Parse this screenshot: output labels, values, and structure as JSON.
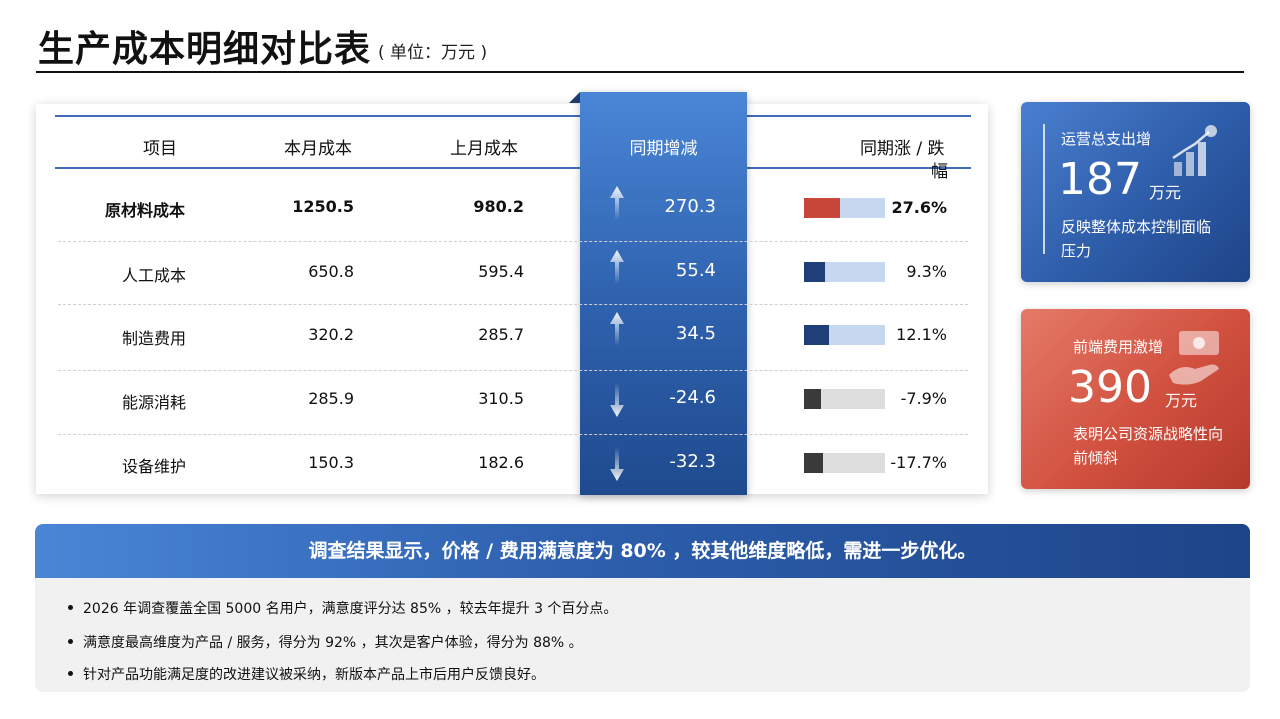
{
  "header": {
    "title": "生产成本明细对比表",
    "subtitle": "( 单位：万元 )"
  },
  "table": {
    "columns": [
      "项目",
      "本月成本",
      "上月成本",
      "同期增减",
      "同期涨 / 跌",
      "幅"
    ],
    "rows": [
      {
        "item": "原材料成本",
        "current": "1250.5",
        "previous": "980.2",
        "change": "270.3",
        "pct": "27.6%",
        "direction": "up",
        "bar_fraction": 0.45,
        "fill_color": "#c9473a",
        "track_color": "#c5d8f0"
      },
      {
        "item": "人工成本",
        "current": "650.8",
        "previous": "595.4",
        "change": "55.4",
        "pct": "9.3%",
        "direction": "up",
        "bar_fraction": 0.26,
        "fill_color": "#1e3f78",
        "track_color": "#c5d8f0"
      },
      {
        "item": "制造费用",
        "current": "320.2",
        "previous": "285.7",
        "change": "34.5",
        "pct": "12.1%",
        "direction": "up",
        "bar_fraction": 0.31,
        "fill_color": "#1e3f78",
        "track_color": "#c5d8f0"
      },
      {
        "item": "能源消耗",
        "current": "285.9",
        "previous": "310.5",
        "change": "-24.6",
        "pct": "-7.9%",
        "direction": "down",
        "bar_fraction": 0.21,
        "fill_color": "#3a3a3a",
        "track_color": "#dedede"
      },
      {
        "item": "设备维护",
        "current": "150.3",
        "previous": "182.6",
        "change": "-32.3",
        "pct": "-17.7%",
        "direction": "down",
        "bar_fraction": 0.23,
        "fill_color": "#3a3a3a",
        "track_color": "#dedede"
      }
    ]
  },
  "kpi_cards": [
    {
      "label": "运营总支出增",
      "value": "187",
      "unit": "万元",
      "desc": "反映整体成本控制面临压力",
      "icon": "bar-chart-growth-icon"
    },
    {
      "label": "前端费用激增",
      "value": "390",
      "unit": "万元",
      "desc": "表明公司资源战略性向前倾斜",
      "icon": "money-hand-icon"
    }
  ],
  "banner": {
    "text": "调查结果显示，价格 / 费用满意度为 80% ，较其他维度略低，需进一步优化。"
  },
  "notes": [
    "2026 年调查覆盖全国 5000 名用户，满意度评分达 85% ，较去年提升 3 个百分点。",
    "满意度最高维度为产品 / 服务，得分为 92% ，其次是客户体验，得分为 88% 。",
    "针对产品功能满足度的改进建议被采纳，新版本产品上市后用户反馈良好。"
  ],
  "colors": {
    "accent_blue": "#2d5fae",
    "accent_red": "#d1503f",
    "up_bar": "#c9473a",
    "neutral_bar": "#1e3f78",
    "down_bar": "#3a3a3a"
  }
}
